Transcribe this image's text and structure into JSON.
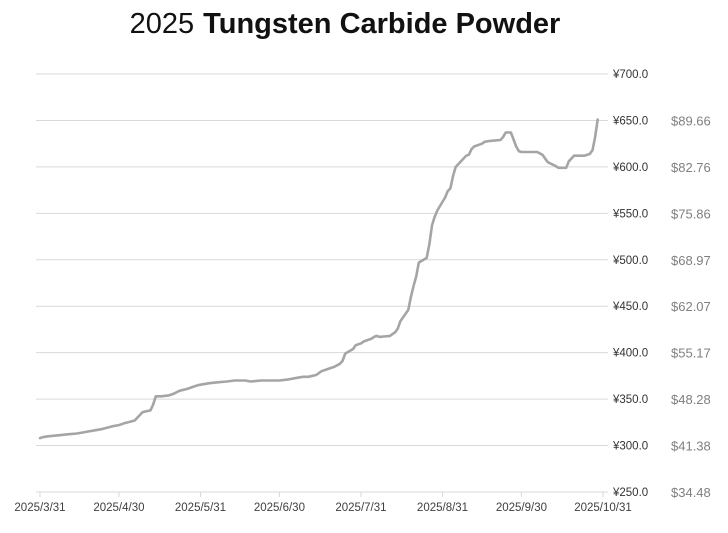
{
  "title": {
    "prefix": "2025",
    "main": "Tungsten Carbide Powder"
  },
  "chart_data": {
    "type": "line",
    "title": "2025 Tungsten Carbide Powder",
    "x_type": "date",
    "x_start": "2025/3/31",
    "x_end": "2025/10/31",
    "x_tick_labels": [
      "2025/3/31",
      "2025/4/30",
      "2025/5/31",
      "2025/6/30",
      "2025/7/31",
      "2025/8/31",
      "2025/9/30",
      "2025/10/31"
    ],
    "ylim_cny": [
      250,
      700
    ],
    "y_step_cny": 50,
    "y_ticks_cny_labels": [
      "¥700.0",
      "¥650.0",
      "¥600.0",
      "¥550.0",
      "¥500.0",
      "¥450.0",
      "¥400.0",
      "¥350.0",
      "¥300.0",
      "¥250.0"
    ],
    "y_ticks_usd_labels": [
      "$89.66",
      "$82.76",
      "$75.86",
      "$68.97",
      "$62.07",
      "$55.17",
      "$48.28",
      "$41.38",
      "$34.48"
    ],
    "usd_labels_align_cny_values": [
      650,
      600,
      550,
      500,
      450,
      400,
      350,
      300,
      250
    ],
    "grid": true,
    "legend": false,
    "line_color": "#a5a5a5",
    "grid_color": "#d9d9d9",
    "axis_text_color": "#404040",
    "cny_label_color": "#333333",
    "usd_label_color": "#7f7f7f",
    "points": [
      [
        "2025/3/31",
        308
      ],
      [
        "2025/4/1",
        309
      ],
      [
        "2025/4/3",
        310
      ],
      [
        "2025/4/7",
        311
      ],
      [
        "2025/4/10",
        312
      ],
      [
        "2025/4/14",
        313
      ],
      [
        "2025/4/16",
        314
      ],
      [
        "2025/4/18",
        315
      ],
      [
        "2025/4/22",
        317
      ],
      [
        "2025/4/24",
        318
      ],
      [
        "2025/4/28",
        321
      ],
      [
        "2025/4/30",
        322
      ],
      [
        "2025/5/2",
        324
      ],
      [
        "2025/5/6",
        327
      ],
      [
        "2025/5/7",
        330
      ],
      [
        "2025/5/8",
        333
      ],
      [
        "2025/5/9",
        336
      ],
      [
        "2025/5/12",
        338
      ],
      [
        "2025/5/13",
        344
      ],
      [
        "2025/5/14",
        353
      ],
      [
        "2025/5/16",
        353
      ],
      [
        "2025/5/19",
        354
      ],
      [
        "2025/5/21",
        356
      ],
      [
        "2025/5/23",
        359
      ],
      [
        "2025/5/26",
        361
      ],
      [
        "2025/5/28",
        363
      ],
      [
        "2025/5/30",
        365
      ],
      [
        "2025/6/3",
        367
      ],
      [
        "2025/6/6",
        368
      ],
      [
        "2025/6/10",
        369
      ],
      [
        "2025/6/13",
        370
      ],
      [
        "2025/6/17",
        370
      ],
      [
        "2025/6/19",
        369
      ],
      [
        "2025/6/23",
        370
      ],
      [
        "2025/6/30",
        370
      ],
      [
        "2025/7/3",
        371
      ],
      [
        "2025/7/7",
        373
      ],
      [
        "2025/7/9",
        374
      ],
      [
        "2025/7/11",
        374
      ],
      [
        "2025/7/14",
        376
      ],
      [
        "2025/7/16",
        380
      ],
      [
        "2025/7/18",
        382
      ],
      [
        "2025/7/21",
        385
      ],
      [
        "2025/7/23",
        388
      ],
      [
        "2025/7/24",
        391
      ],
      [
        "2025/7/25",
        399
      ],
      [
        "2025/7/28",
        404
      ],
      [
        "2025/7/29",
        408
      ],
      [
        "2025/7/31",
        410
      ],
      [
        "2025/8/1",
        412
      ],
      [
        "2025/8/4",
        415
      ],
      [
        "2025/8/5",
        417
      ],
      [
        "2025/8/6",
        418
      ],
      [
        "2025/8/7",
        417
      ],
      [
        "2025/8/11",
        418
      ],
      [
        "2025/8/12",
        420
      ],
      [
        "2025/8/13",
        422
      ],
      [
        "2025/8/14",
        426
      ],
      [
        "2025/8/15",
        434
      ],
      [
        "2025/8/18",
        446
      ],
      [
        "2025/8/19",
        460
      ],
      [
        "2025/8/20",
        472
      ],
      [
        "2025/8/21",
        482
      ],
      [
        "2025/8/22",
        497
      ],
      [
        "2025/8/25",
        502
      ],
      [
        "2025/8/26",
        517
      ],
      [
        "2025/8/27",
        537
      ],
      [
        "2025/8/28",
        546
      ],
      [
        "2025/8/29",
        553
      ],
      [
        "2025/9/1",
        567
      ],
      [
        "2025/9/2",
        574
      ],
      [
        "2025/9/3",
        577
      ],
      [
        "2025/9/4",
        590
      ],
      [
        "2025/9/5",
        600
      ],
      [
        "2025/9/8",
        609
      ],
      [
        "2025/9/9",
        612
      ],
      [
        "2025/9/10",
        613
      ],
      [
        "2025/9/11",
        619
      ],
      [
        "2025/9/12",
        622
      ],
      [
        "2025/9/15",
        625
      ],
      [
        "2025/9/16",
        627
      ],
      [
        "2025/9/18",
        628
      ],
      [
        "2025/9/22",
        629
      ],
      [
        "2025/9/23",
        632
      ],
      [
        "2025/9/24",
        637
      ],
      [
        "2025/9/26",
        637
      ],
      [
        "2025/9/28",
        622
      ],
      [
        "2025/9/29",
        617
      ],
      [
        "2025/9/30",
        616
      ],
      [
        "2025/10/6",
        616
      ],
      [
        "2025/10/8",
        613
      ],
      [
        "2025/10/9",
        609
      ],
      [
        "2025/10/10",
        605
      ],
      [
        "2025/10/13",
        601
      ],
      [
        "2025/10/14",
        599
      ],
      [
        "2025/10/17",
        599
      ],
      [
        "2025/10/18",
        606
      ],
      [
        "2025/10/20",
        612
      ],
      [
        "2025/10/24",
        612
      ],
      [
        "2025/10/26",
        614
      ],
      [
        "2025/10/27",
        618
      ],
      [
        "2025/10/28",
        632
      ],
      [
        "2025/10/29",
        651
      ]
    ]
  }
}
